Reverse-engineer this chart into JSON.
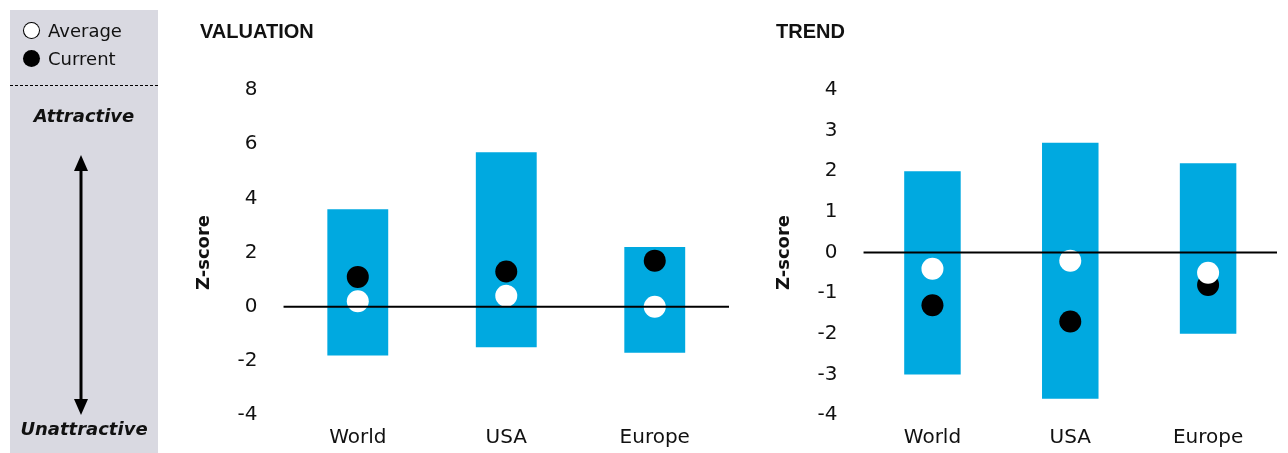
{
  "chart_data": [
    {
      "type": "bar",
      "title": "VALUATION",
      "ylabel": "Z-score",
      "categories": [
        "World",
        "USA",
        "Europe"
      ],
      "series": [
        {
          "type": "bar",
          "color": "#00a9e0",
          "base": [
            -1.8,
            -1.5,
            -1.7
          ],
          "values": [
            5.4,
            7.2,
            3.9
          ]
        },
        {
          "type": "scatter",
          "name": "Average",
          "color": "#ffffff",
          "x": [
            "World",
            "USA",
            "Europe"
          ],
          "values": [
            0.2,
            0.4,
            0.0
          ]
        },
        {
          "type": "scatter",
          "name": "Current",
          "color": "#000000",
          "x": [
            "World",
            "USA",
            "Europe"
          ],
          "values": [
            1.1,
            1.3,
            1.7
          ]
        }
      ],
      "ylim": [
        -4,
        8
      ],
      "yticks": [
        -4,
        -2,
        0,
        2,
        4,
        6,
        8
      ],
      "marker": "circle",
      "legend": "left",
      "ref_lines": [
        {
          "axis": "y",
          "value": 0,
          "color": "#000000"
        }
      ],
      "annotations": [
        "Attractive",
        "Unattractive"
      ]
    },
    {
      "type": "bar",
      "title": "TREND",
      "ylabel": "Z-score",
      "categories": [
        "World",
        "USA",
        "Europe"
      ],
      "series": [
        {
          "type": "bar",
          "color": "#00a9e0",
          "base": [
            -3.0,
            -3.6,
            -2.0
          ],
          "values": [
            5.0,
            6.3,
            4.2
          ]
        },
        {
          "type": "scatter",
          "color": "#ffffff",
          "x": [
            "World",
            "USA",
            "Europe"
          ],
          "values": [
            -0.4,
            -0.2,
            -0.5
          ]
        },
        {
          "type": "scatter",
          "color": "#000000",
          "x": [
            "World",
            "USA",
            "Europe"
          ],
          "values": [
            -1.3,
            -1.7,
            -0.8
          ]
        }
      ],
      "ylim": [
        -4,
        4
      ],
      "yticks": [
        -4,
        -3,
        -2,
        -1,
        0,
        1,
        2,
        3,
        4
      ],
      "marker": "circle",
      "ref_lines": [
        {
          "axis": "y",
          "value": 0,
          "color": "#000000"
        }
      ]
    }
  ]
}
